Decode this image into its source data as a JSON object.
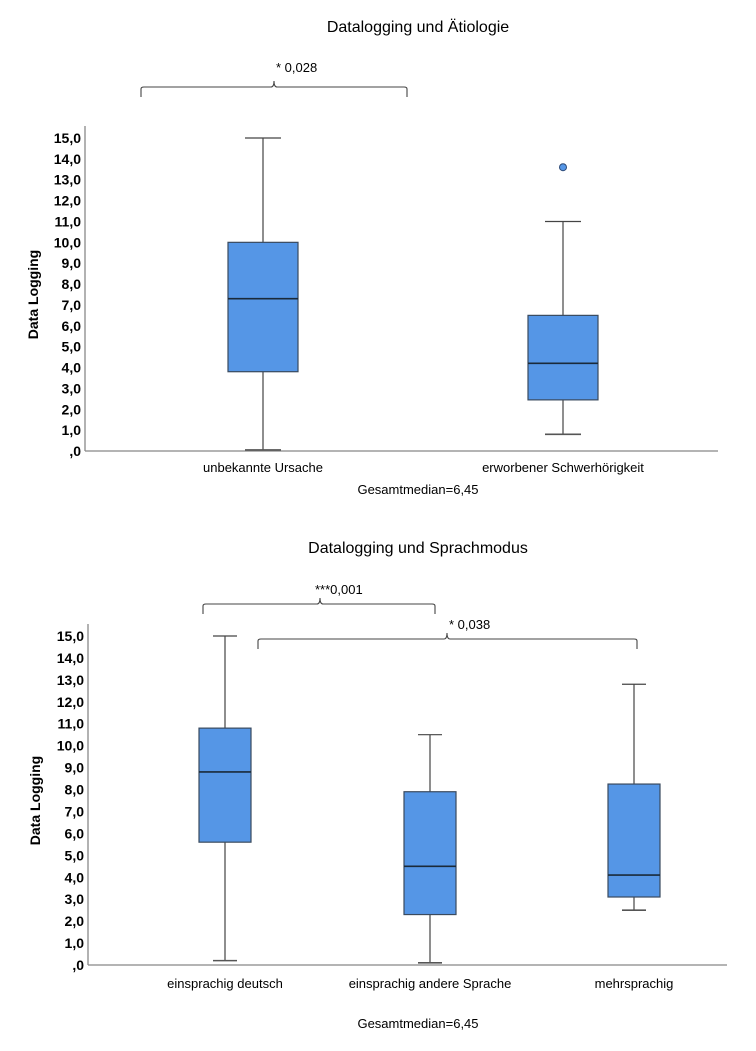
{
  "chart_data": [
    {
      "type": "boxplot",
      "title": "Datalogging und Ätiologie",
      "ylabel": "Data Logging",
      "xlabel": "Gesamtmedian=6,45",
      "ylim": [
        0,
        15
      ],
      "yticks": [
        ",0",
        "1,0",
        "2,0",
        "3,0",
        "4,0",
        "5,0",
        "6,0",
        "7,0",
        "8,0",
        "9,0",
        "10,0",
        "11,0",
        "12,0",
        "13,0",
        "14,0",
        "15,0"
      ],
      "categories": [
        "unbekannte Ursache",
        "erworbener Schwerhörigkeit"
      ],
      "boxes": [
        {
          "min": 0.05,
          "q1": 3.8,
          "median": 7.3,
          "q3": 10.0,
          "max": 15.0,
          "outliers": []
        },
        {
          "min": 0.8,
          "q1": 2.45,
          "median": 4.2,
          "q3": 6.5,
          "max": 11.0,
          "outliers": [
            13.6
          ]
        }
      ],
      "annotations": [
        {
          "from": 0,
          "to": 1,
          "label": "*   0,028"
        }
      ],
      "box_color": "#5596e6"
    },
    {
      "type": "boxplot",
      "title": "Datalogging und Sprachmodus",
      "ylabel": "Data Logging",
      "xlabel": "Gesamtmedian=6,45",
      "ylim": [
        0,
        15
      ],
      "yticks": [
        ",0",
        "1,0",
        "2,0",
        "3,0",
        "4,0",
        "5,0",
        "6,0",
        "7,0",
        "8,0",
        "9,0",
        "10,0",
        "11,0",
        "12,0",
        "13,0",
        "14,0",
        "15,0"
      ],
      "categories": [
        "einsprachig deutsch",
        "einsprachig andere Sprache",
        "mehrsprachig"
      ],
      "boxes": [
        {
          "min": 0.2,
          "q1": 5.6,
          "median": 8.8,
          "q3": 10.8,
          "max": 15.0,
          "outliers": []
        },
        {
          "min": 0.1,
          "q1": 2.3,
          "median": 4.5,
          "q3": 7.9,
          "max": 10.5,
          "outliers": []
        },
        {
          "min": 2.5,
          "q1": 3.1,
          "median": 4.1,
          "q3": 8.25,
          "max": 12.8,
          "outliers": []
        }
      ],
      "annotations": [
        {
          "from": 0,
          "to": 1,
          "label": "***0,001"
        },
        {
          "from": 0,
          "to": 2,
          "label": "* 0,038"
        }
      ],
      "box_color": "#5596e6"
    }
  ]
}
